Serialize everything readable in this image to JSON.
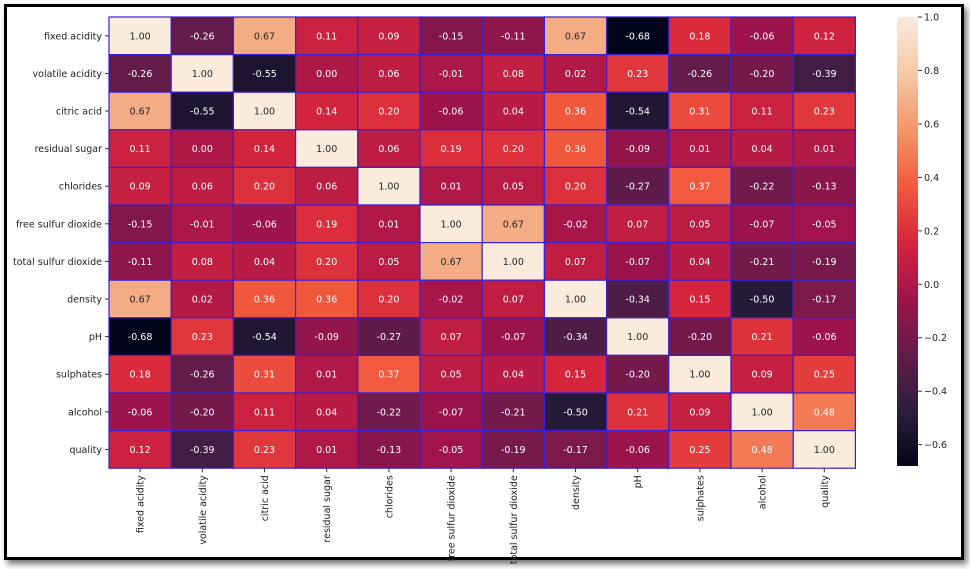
{
  "chart_data": {
    "type": "heatmap",
    "title": "",
    "variables": [
      "fixed acidity",
      "volatile acidity",
      "citric acid",
      "residual sugar",
      "chlorides",
      "free sulfur dioxide",
      "total sulfur dioxide",
      "density",
      "pH",
      "sulphates",
      "alcohol",
      "quality"
    ],
    "values": [
      [
        1.0,
        -0.26,
        0.67,
        0.11,
        0.09,
        -0.15,
        -0.11,
        0.67,
        -0.68,
        0.18,
        -0.06,
        0.12
      ],
      [
        -0.26,
        1.0,
        -0.55,
        0.0,
        0.06,
        -0.01,
        0.08,
        0.02,
        0.23,
        -0.26,
        -0.2,
        -0.39
      ],
      [
        0.67,
        -0.55,
        1.0,
        0.14,
        0.2,
        -0.06,
        0.04,
        0.36,
        -0.54,
        0.31,
        0.11,
        0.23
      ],
      [
        0.11,
        0.0,
        0.14,
        1.0,
        0.06,
        0.19,
        0.2,
        0.36,
        -0.09,
        0.01,
        0.04,
        0.01
      ],
      [
        0.09,
        0.06,
        0.2,
        0.06,
        1.0,
        0.01,
        0.05,
        0.2,
        -0.27,
        0.37,
        -0.22,
        -0.13
      ],
      [
        -0.15,
        -0.01,
        -0.06,
        0.19,
        0.01,
        1.0,
        0.67,
        -0.02,
        0.07,
        0.05,
        -0.07,
        -0.05
      ],
      [
        -0.11,
        0.08,
        0.04,
        0.2,
        0.05,
        0.67,
        1.0,
        0.07,
        -0.07,
        0.04,
        -0.21,
        -0.19
      ],
      [
        0.67,
        0.02,
        0.36,
        0.36,
        0.2,
        -0.02,
        0.07,
        1.0,
        -0.34,
        0.15,
        -0.5,
        -0.17
      ],
      [
        -0.68,
        0.23,
        -0.54,
        -0.09,
        -0.27,
        0.07,
        -0.07,
        -0.34,
        1.0,
        -0.2,
        0.21,
        -0.06
      ],
      [
        0.18,
        -0.26,
        0.31,
        0.01,
        0.37,
        0.05,
        0.04,
        0.15,
        -0.2,
        1.0,
        0.09,
        0.25
      ],
      [
        -0.06,
        -0.2,
        0.11,
        0.04,
        -0.22,
        -0.07,
        -0.21,
        -0.5,
        0.21,
        0.09,
        1.0,
        0.48
      ],
      [
        0.12,
        -0.39,
        0.23,
        0.01,
        -0.13,
        -0.05,
        -0.19,
        -0.17,
        -0.06,
        0.25,
        0.48,
        1.0
      ]
    ],
    "cell_labels": [
      [
        "1.00",
        "-0.26",
        "0.67",
        "0.11",
        "0.09",
        "-0.15",
        "-0.11",
        "0.67",
        "-0.68",
        "0.18",
        "-0.06",
        "0.12"
      ],
      [
        "-0.26",
        "1.00",
        "-0.55",
        "0.00",
        "0.06",
        "-0.01",
        "0.08",
        "0.02",
        "0.23",
        "-0.26",
        "-0.20",
        "-0.39"
      ],
      [
        "0.67",
        "-0.55",
        "1.00",
        "0.14",
        "0.20",
        "-0.06",
        "0.04",
        "0.36",
        "-0.54",
        "0.31",
        "0.11",
        "0.23"
      ],
      [
        "0.11",
        "0.00",
        "0.14",
        "1.00",
        "0.06",
        "0.19",
        "0.20",
        "0.36",
        "-0.09",
        "0.01",
        "0.04",
        "0.01"
      ],
      [
        "0.09",
        "0.06",
        "0.20",
        "0.06",
        "1.00",
        "0.01",
        "0.05",
        "0.20",
        "-0.27",
        "0.37",
        "-0.22",
        "-0.13"
      ],
      [
        "-0.15",
        "-0.01",
        "-0.06",
        "0.19",
        "0.01",
        "1.00",
        "0.67",
        "-0.02",
        "0.07",
        "0.05",
        "-0.07",
        "-0.05"
      ],
      [
        "-0.11",
        "0.08",
        "0.04",
        "0.20",
        "0.05",
        "0.67",
        "1.00",
        "0.07",
        "-0.07",
        "0.04",
        "-0.21",
        "-0.19"
      ],
      [
        "0.67",
        "0.02",
        "0.36",
        "0.36",
        "0.20",
        "-0.02",
        "0.07",
        "1.00",
        "-0.34",
        "0.15",
        "-0.50",
        "-0.17"
      ],
      [
        "-0.68",
        "0.23",
        "-0.54",
        "-0.09",
        "-0.27",
        "0.07",
        "-0.07",
        "-0.34",
        "1.00",
        "-0.20",
        "0.21",
        "-0.06"
      ],
      [
        "0.18",
        "-0.26",
        "0.31",
        "0.01",
        "0.37",
        "0.05",
        "0.04",
        "0.15",
        "-0.20",
        "1.00",
        "0.09",
        "0.25"
      ],
      [
        "-0.06",
        "-0.20",
        "0.11",
        "0.04",
        "-0.22",
        "-0.07",
        "-0.21",
        "-0.50",
        "0.21",
        "0.09",
        "1.00",
        "0.48"
      ],
      [
        "0.12",
        "-0.39",
        "0.23",
        "0.01",
        "-0.13",
        "-0.05",
        "-0.19",
        "-0.17",
        "-0.06",
        "0.25",
        "0.48",
        "1.00"
      ]
    ],
    "colorbar": {
      "min": -0.68,
      "max": 1.0,
      "ticks": [
        -0.6,
        -0.4,
        -0.2,
        0.0,
        0.2,
        0.4,
        0.6,
        0.8,
        1.0
      ],
      "tick_labels": [
        "−0.6",
        "−0.4",
        "−0.2",
        "0.0",
        "0.2",
        "0.4",
        "0.6",
        "0.8",
        "1.0"
      ],
      "placement": "right"
    },
    "colormap": [
      "#03051a",
      "#2c1e3e",
      "#631c4a",
      "#a0134b",
      "#d7263c",
      "#f15a3e",
      "#f39769",
      "#f6c8a7",
      "#faebdd"
    ],
    "cell_border_color": "#3b1fd6",
    "dark_text_color": "#262626",
    "light_text_color": "#ffffff"
  }
}
